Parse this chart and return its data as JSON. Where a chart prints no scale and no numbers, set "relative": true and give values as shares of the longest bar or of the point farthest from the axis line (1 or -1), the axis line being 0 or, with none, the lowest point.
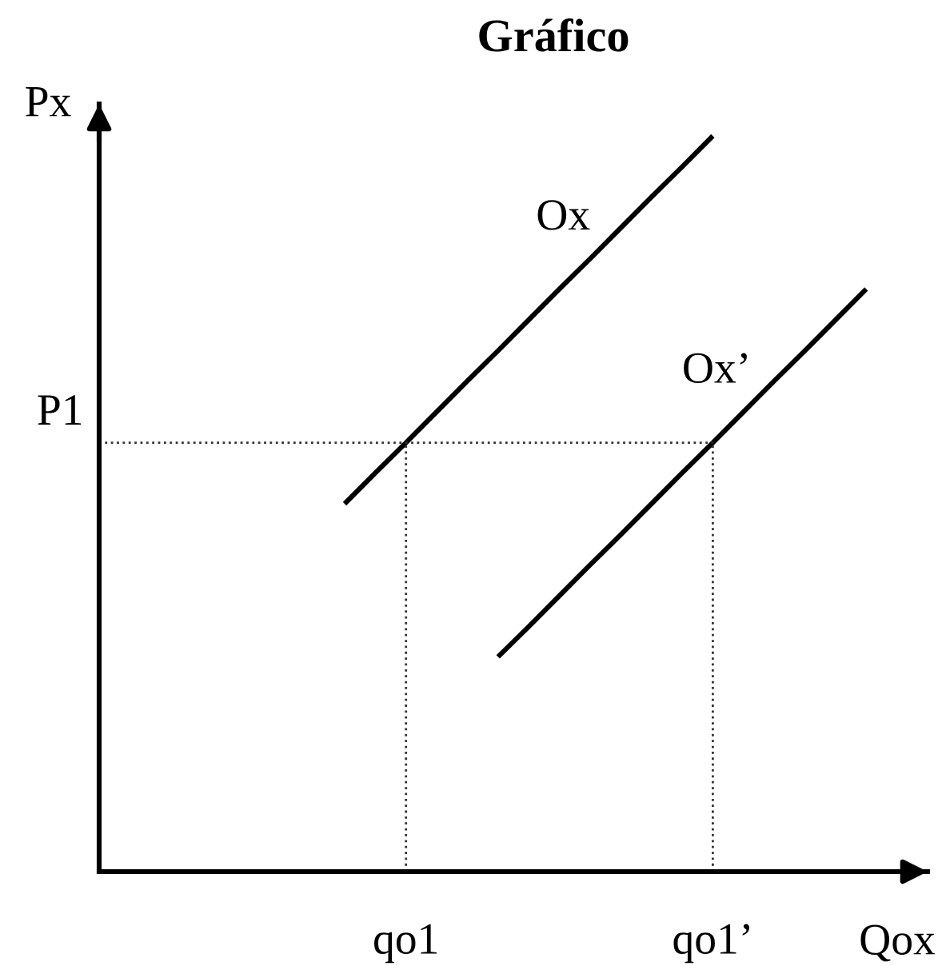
{
  "chart_data": {
    "type": "line",
    "title": "Gráfico",
    "xlabel": "Qox",
    "ylabel": "Px",
    "relative": true,
    "categories": [
      null,
      null,
      null,
      null,
      null,
      null,
      null,
      null,
      null,
      "qo1",
      null,
      null,
      null,
      null,
      null,
      null,
      null,
      null,
      null,
      "qo1’",
      null,
      null,
      null,
      null,
      null
    ],
    "series": [
      {
        "name": "Ox",
        "color": "#000000",
        "values": [
          null,
          null,
          null,
          null,
          null,
          null,
          null,
          0.5,
          0.542,
          0.583,
          0.625,
          0.667,
          0.708,
          0.75,
          0.792,
          0.833,
          0.875,
          0.917,
          0.958,
          1.0,
          null,
          null,
          null,
          null,
          null
        ]
      },
      {
        "name": "Ox’",
        "color": "#000000",
        "values": [
          null,
          null,
          null,
          null,
          null,
          null,
          null,
          null,
          null,
          null,
          null,
          null,
          0.292,
          0.333,
          0.375,
          0.417,
          0.458,
          0.5,
          0.542,
          0.583,
          0.625,
          0.667,
          0.708,
          0.75,
          0.792
        ]
      }
    ],
    "ref_lines": [
      {
        "axis": "y",
        "value": 0.583,
        "label": "P1",
        "color": "#333333",
        "line_style": "dotted"
      },
      {
        "axis": "x",
        "value": "qo1",
        "color": "#333333",
        "line_style": "dotted"
      },
      {
        "axis": "x",
        "value": "qo1’",
        "color": "#333333",
        "line_style": "dotted"
      }
    ],
    "legend": false,
    "marker": "none",
    "line_style": "solid"
  }
}
